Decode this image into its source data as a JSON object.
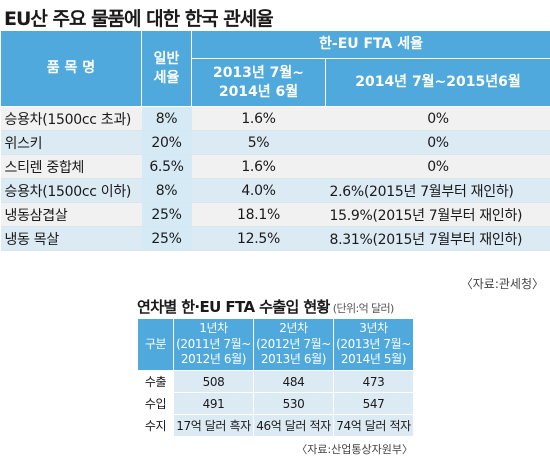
{
  "table1": {
    "title": "EU산 주요 물품에 대한 한국 관세율",
    "headers": {
      "item": "품 목 명",
      "general": "일반\n세율",
      "fta": "한-EU FTA 세율",
      "period1": "2013년 7월~\n2014년 6월",
      "period2": "2014년 7월~2015년6월"
    },
    "rows": [
      {
        "name": "승용차(1500cc 초과)",
        "general": "8%",
        "p1": "1.6%",
        "p2": "0%"
      },
      {
        "name": "위스키",
        "general": "20%",
        "p1": "5%",
        "p2": "0%"
      },
      {
        "name": "스티렌 중합체",
        "general": "6.5%",
        "p1": "1.6%",
        "p2": "0%"
      },
      {
        "name": "승용차(1500cc 이하)",
        "general": "8%",
        "p1": "4.0%",
        "p2": "2.6%(2015년 7월부터 재인하)"
      },
      {
        "name": "냉동삼겹살",
        "general": "25%",
        "p1": "18.1%",
        "p2": "15.9%(2015년 7월부터 재인하)"
      },
      {
        "name": "냉동 목살",
        "general": "25%",
        "p1": "12.5%",
        "p2": "8.31%(2015년 7월부터 재인하)"
      }
    ],
    "source": "〈자료:관세청〉"
  },
  "table2": {
    "title": "연차별 한·EU FTA 수출입 현황",
    "unit": "(단위:억 달러)",
    "headers": {
      "label": "구분",
      "y1": "1년차\n(2011년 7월~\n2012년 6월)",
      "y2": "2년차\n(2012년 7월~\n2013년 6월)",
      "y3": "3년차\n(2013년 7월~\n2014년 5월)"
    },
    "rows": [
      {
        "label": "수출",
        "y1": "508",
        "y2": "484",
        "y3": "473"
      },
      {
        "label": "수입",
        "y1": "491",
        "y2": "530",
        "y3": "547"
      },
      {
        "label": "수지",
        "y1": "17억 달러 흑자",
        "y2": "46억 달러 적자",
        "y3": "74억 달러 적자"
      }
    ],
    "source": "〈자료:산업통상자원부〉"
  }
}
